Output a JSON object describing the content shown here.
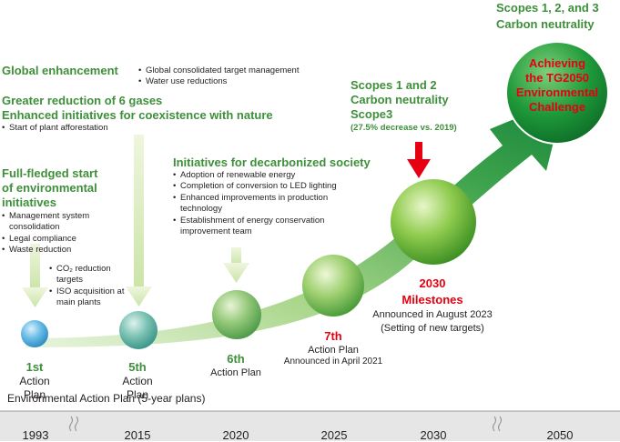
{
  "top_right": {
    "line1": "Scopes 1, 2, and 3",
    "line2": "Carbon neutrality"
  },
  "goal": {
    "line1": "Achieving",
    "line2": "the TG2050",
    "line3": "Environmental",
    "line4": "Challenge"
  },
  "global": {
    "title": "Global enhancement",
    "bullets": [
      "Global consolidated target management",
      "Water use reductions"
    ]
  },
  "greater": {
    "line1": "Greater reduction of 6 gases",
    "line2": "Enhanced initiatives for coexistence with nature",
    "bullets": [
      "Start of plant afforestation"
    ]
  },
  "fullfledged": {
    "line1": "Full-fledged start",
    "line2": "of environmental",
    "line3": "initiatives",
    "bullets": [
      "Management system consolidation",
      "Legal compliance",
      "Waste reduction"
    ],
    "sub_bullets_1": "CO₂ reduction targets",
    "sub_bullets_2": "ISO acquisition at main plants"
  },
  "decarb": {
    "title": "Initiatives for decarbonized society",
    "bullets": [
      "Adoption of renewable energy",
      "Completion of conversion to LED lighting",
      "Enhanced improvements in production technology",
      "Establishment of energy conservation improvement team"
    ]
  },
  "scopes12": {
    "line1": "Scopes 1 and 2",
    "line2": "Carbon neutrality",
    "line3": "Scope3",
    "line4": "(27.5% decrease vs. 2019)"
  },
  "plans": {
    "p1_num": "1st",
    "p1_label": "Action Plan",
    "p5_num": "5th",
    "p5_label": "Action Plan",
    "env_plan": "Environmental Action Plan (5-year plans)",
    "p6_num": "6th",
    "p6_label": "Action Plan",
    "p7_num": "7th",
    "p7_label": "Action Plan",
    "p7_note": "Announced in April 2021",
    "m_year": "2030",
    "m_label": "Milestones",
    "m_note1": "Announced in August 2023",
    "m_note2": "(Setting of new targets)"
  },
  "years": [
    "1993",
    "2015",
    "2020",
    "2025",
    "2030",
    "2050"
  ],
  "colors": {
    "green_text": "#3e8f3a",
    "red": "#e60012",
    "arrow_dark": "#1f8a3b",
    "arrow_light": "#cde8a9",
    "blue_sphere": "#5fb8e6"
  }
}
